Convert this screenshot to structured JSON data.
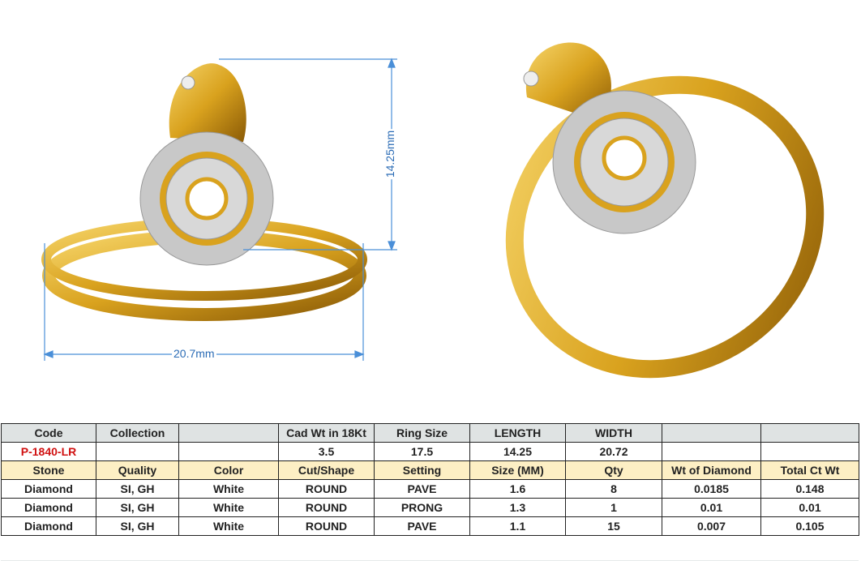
{
  "dimensions": {
    "width_label": "20.7mm",
    "height_label": "14.25mm"
  },
  "colors": {
    "gold": "#d9a21e",
    "dimension_line": "#4a8fd8",
    "code_text": "#d01010",
    "header_bg": "#dfe3e3",
    "stone_header_bg": "#fdefc4"
  },
  "table": {
    "header1": [
      "Code",
      "Collection",
      "",
      "Cad Wt in 18Kt",
      "Ring Size",
      "LENGTH",
      "WIDTH",
      "",
      ""
    ],
    "row1": [
      "P-1840-LR",
      "",
      "",
      "3.5",
      "17.5",
      "14.25",
      "20.72",
      "",
      ""
    ],
    "header2": [
      "Stone",
      "Quality",
      "Color",
      "Cut/Shape",
      "Setting",
      "Size (MM)",
      "Qty",
      "Wt of Diamond",
      "Total Ct Wt"
    ],
    "stones": [
      [
        "Diamond",
        "SI, GH",
        "White",
        "ROUND",
        "PAVE",
        "1.6",
        "8",
        "0.0185",
        "0.148"
      ],
      [
        "Diamond",
        "SI, GH",
        "White",
        "ROUND",
        "PRONG",
        "1.3",
        "1",
        "0.01",
        "0.01"
      ],
      [
        "Diamond",
        "SI, GH",
        "White",
        "ROUND",
        "PAVE",
        "1.1",
        "15",
        "0.007",
        "0.105"
      ]
    ]
  }
}
